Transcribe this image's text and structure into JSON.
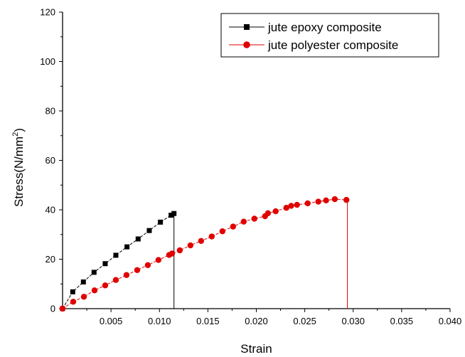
{
  "chart_data": {
    "type": "line",
    "xlabel": "Strain",
    "ylabel_prefix": "Stress(N/mm",
    "ylabel_sup": "2",
    "ylabel_suffix": ")",
    "xlim": [
      0,
      0.04
    ],
    "ylim": [
      0,
      120
    ],
    "x_ticks": [
      0.005,
      0.01,
      0.015,
      0.02,
      0.025,
      0.03,
      0.035,
      0.04
    ],
    "x_tick_labels": [
      "0.005",
      "0.010",
      "0.015",
      "0.020",
      "0.025",
      "0.030",
      "0.035",
      "0.040"
    ],
    "y_ticks": [
      0,
      20,
      40,
      60,
      80,
      100,
      120
    ],
    "y_tick_labels": [
      "0",
      "20",
      "40",
      "60",
      "80",
      "100",
      "120"
    ],
    "grid": false,
    "legend_position": "top-right",
    "series": [
      {
        "name": "jute epoxy composite",
        "color": "#000000",
        "marker": "square",
        "line_style": "dashed",
        "x": [
          0,
          0.00105,
          0.00215,
          0.00325,
          0.0044,
          0.0055,
          0.00665,
          0.0078,
          0.00895,
          0.0101,
          0.0112,
          0.0115
        ],
        "y": [
          0,
          6.8,
          10.8,
          14.7,
          18.2,
          21.6,
          25.0,
          28.2,
          31.6,
          35.0,
          37.8,
          38.5
        ],
        "drop_x": 0.0115
      },
      {
        "name": "jute polyester composite",
        "color": "#e00000",
        "marker": "circle",
        "line_style": "dashed",
        "x": [
          0,
          0.0011,
          0.0022,
          0.0033,
          0.0044,
          0.0055,
          0.0066,
          0.0077,
          0.0088,
          0.0099,
          0.011,
          0.0113,
          0.0121,
          0.0132,
          0.0143,
          0.0154,
          0.0165,
          0.0176,
          0.0187,
          0.0198,
          0.0209,
          0.0212,
          0.022,
          0.0231,
          0.0236,
          0.0242,
          0.0253,
          0.0264,
          0.0272,
          0.0281,
          0.0293
        ],
        "y": [
          0,
          2.8,
          4.8,
          7.4,
          9.4,
          11.6,
          13.6,
          15.6,
          17.6,
          19.7,
          21.7,
          22.3,
          23.6,
          25.6,
          27.4,
          29.2,
          31.3,
          33.2,
          35.2,
          36.4,
          37.4,
          38.6,
          39.4,
          40.8,
          41.6,
          42.0,
          42.6,
          43.3,
          43.8,
          44.3,
          44.0
        ],
        "drop_x": 0.0294
      }
    ]
  }
}
